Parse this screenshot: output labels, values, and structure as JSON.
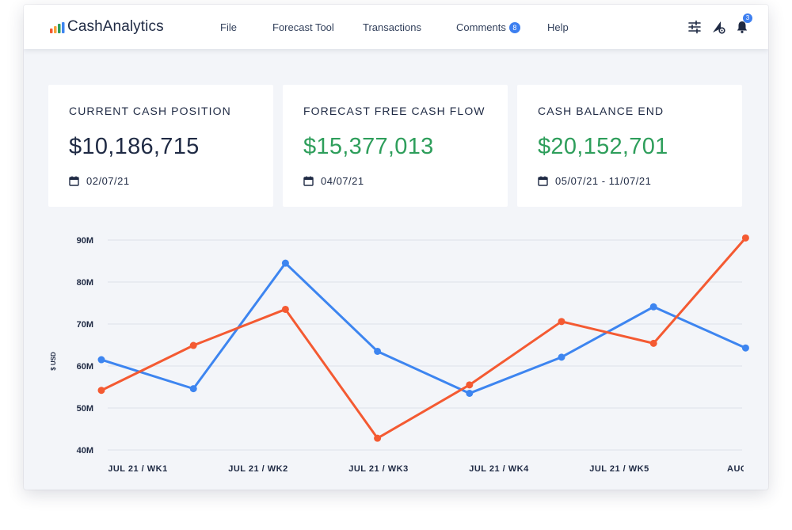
{
  "app": {
    "name": "CashAnalytics"
  },
  "nav": {
    "file": "File",
    "forecast_tool": "Forecast Tool",
    "transactions": "Transactions",
    "comments": "Comments",
    "comments_badge": "8",
    "help": "Help"
  },
  "toolbar": {
    "settings_icon": "sliders-icon",
    "admin_icon": "admin-settings-icon",
    "notifications_icon": "bell-icon",
    "notifications_count": "3"
  },
  "cards": [
    {
      "title": "CURRENT CASH POSITION",
      "value": "$10,186,715",
      "date": "02/07/21",
      "value_color": "#1f2a44"
    },
    {
      "title": "FORECAST FREE CASH FLOW",
      "value": "$15,377,013",
      "date": "04/07/21",
      "value_color": "#2e9e5b"
    },
    {
      "title": "CASH BALANCE END",
      "value": "$20,152,701",
      "date": "05/07/21 - 11/07/21",
      "value_color": "#2e9e5b"
    }
  ],
  "colors": {
    "blue_series": "#3d85f0",
    "orange_series": "#f45a32",
    "accent": "#3d7ff0"
  },
  "chart_data": {
    "type": "line",
    "ylabel": "$ USD",
    "ylim": [
      40,
      90
    ],
    "yticks": [
      "90M",
      "80M",
      "70M",
      "60M",
      "50M",
      "40M"
    ],
    "ytick_values": [
      90,
      80,
      70,
      60,
      50,
      40
    ],
    "x_tick_labels": [
      "JUL 21 / WK1",
      "JUL 21 / WK2",
      "JUL 21 / WK3",
      "JUL 21 / WK4",
      "JUL 21 / WK5",
      "AUG"
    ],
    "grid": true,
    "x_points": [
      0,
      1,
      2,
      3,
      4,
      5,
      6,
      7
    ],
    "series": [
      {
        "color": "#3d85f0",
        "values": [
          61.5,
          54.6,
          84.5,
          63.5,
          53.5,
          62.1,
          74.1,
          64.3
        ]
      },
      {
        "color": "#f45a32",
        "values": [
          54.2,
          64.9,
          73.5,
          42.8,
          55.5,
          70.6,
          65.4,
          90.5
        ]
      }
    ]
  }
}
